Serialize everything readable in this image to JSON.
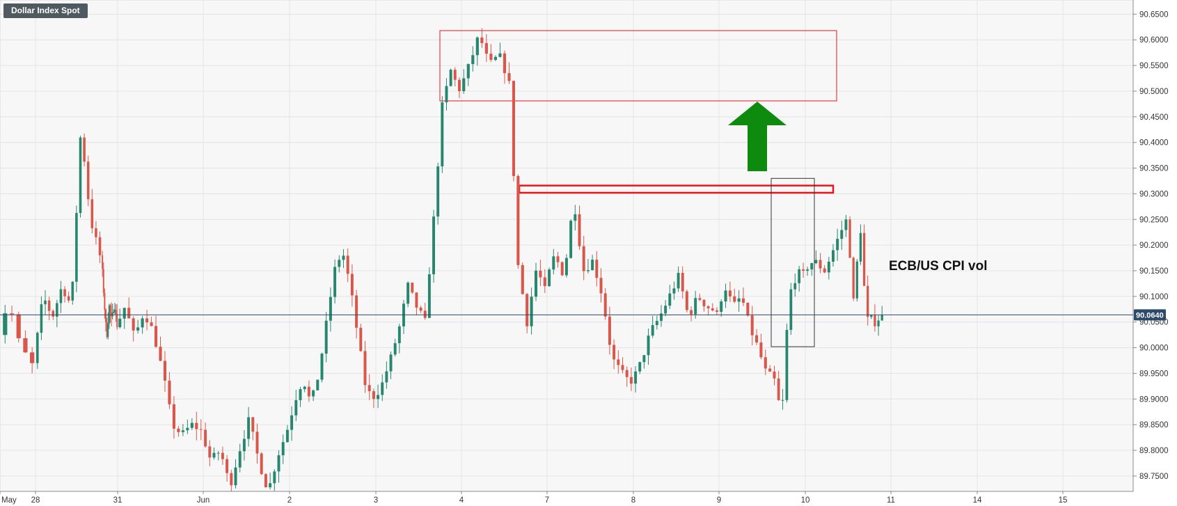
{
  "window": {
    "instrument_title": "Dollar Index Spot"
  },
  "annotations": {
    "event_label": "ECB/US CPI vol"
  },
  "colors": {
    "up": "#26876e",
    "down": "#d9574a",
    "grid": "#e4e4e4",
    "background": "#f7f7f7",
    "last_price_badge": "#2d4a6b",
    "resistance_box": "#e8141c",
    "arrow": "#0e8a0e",
    "focus_box": "#333333"
  },
  "chart_data": {
    "type": "candlestick",
    "title": "Dollar Index Spot",
    "grid": true,
    "y_axis_position": "right",
    "ylim": [
      89.72,
      90.66
    ],
    "x_tick_labels": [
      "May",
      "28",
      "31",
      "Jun",
      "2",
      "3",
      "4",
      "7",
      "8",
      "9",
      "10",
      "11",
      "14",
      "15"
    ],
    "y_tick_labels": [
      "90.6500",
      "90.6000",
      "90.5500",
      "90.5000",
      "90.4500",
      "90.4000",
      "90.3500",
      "90.3000",
      "90.2500",
      "90.2000",
      "90.1500",
      "90.1000",
      "90.0500",
      "90.0000",
      "89.9500",
      "89.9000",
      "89.8500",
      "89.8000",
      "89.7500"
    ],
    "last_price": {
      "value": 90.064,
      "label": "90.0640"
    },
    "segments": [
      {
        "start": "May 27 12:00",
        "end": "May 28 00:00",
        "bars": 7,
        "open": 90.07,
        "points": [
          90.02,
          90.09,
          90.0
        ],
        "close": 89.97
      },
      {
        "start": "May 28",
        "end": "May 29 08:00",
        "bars": 17,
        "open": 89.97,
        "points": [
          90.1,
          90.06,
          90.12,
          90.08,
          90.43,
          90.25
        ],
        "close": 90.18
      },
      {
        "start": "May 29 08:00",
        "end": "May 31",
        "bars": 14,
        "open": 90.18,
        "points": [
          90.1,
          90.02,
          90.08,
          90.05,
          90.09
        ],
        "close": 90.04
      },
      {
        "start": "May 31",
        "end": "Jun 1 00:00",
        "bars": 19,
        "open": 90.04,
        "points": [
          90.08,
          90.02,
          90.07,
          90.03,
          89.95,
          89.85,
          89.83,
          89.85
        ],
        "close": 89.84
      },
      {
        "start": "Jun 1 00:00",
        "end": "Jun 2 00:00",
        "bars": 20,
        "open": 89.84,
        "points": [
          89.78,
          89.8,
          89.73,
          89.8,
          89.86,
          89.78,
          89.72,
          89.79
        ],
        "close": 89.84
      },
      {
        "start": "Jun 2 00:00",
        "end": "Jun 3 00:00",
        "bars": 20,
        "open": 89.84,
        "points": [
          89.9,
          89.94,
          89.89,
          89.95,
          90.05,
          90.15,
          90.19,
          90.12,
          90.02,
          89.92
        ],
        "close": 89.9
      },
      {
        "start": "Jun 3 00:00",
        "end": "Jun 4 00:00",
        "bars": 20,
        "open": 89.9,
        "points": [
          89.93,
          89.98,
          90.04,
          90.12,
          90.08,
          90.05,
          90.25,
          90.47,
          90.54
        ],
        "close": 90.5
      },
      {
        "start": "Jun 4 00:00",
        "end": "Jun 4 14:00",
        "bars": 11,
        "open": 90.5,
        "points": [
          90.55,
          90.61,
          90.55,
          90.57
        ],
        "close": 90.52
      },
      {
        "start": "Jun 4 14:00",
        "end": "Jun 7 00:00",
        "bars": 8,
        "open": 90.52,
        "points": [
          90.16,
          90.05,
          90.15
        ],
        "close": 90.12
      },
      {
        "start": "Jun 7 00:00",
        "end": "Jun 8 00:00",
        "bars": 20,
        "open": 90.12,
        "points": [
          90.18,
          90.14,
          90.29,
          90.15,
          90.17,
          90.1,
          89.98,
          89.95
        ],
        "close": 89.93
      },
      {
        "start": "Jun 8 00:00",
        "end": "Jun 9 00:00",
        "bars": 20,
        "open": 89.93,
        "points": [
          89.97,
          90.03,
          90.06,
          90.1,
          90.14,
          90.06,
          90.1,
          90.08
        ],
        "close": 90.07
      },
      {
        "start": "Jun 9 00:00",
        "end": "Jun 9 16:00",
        "bars": 13,
        "open": 90.07,
        "points": [
          90.12,
          90.08,
          90.1,
          90.04,
          90.0,
          89.95
        ],
        "close": 89.94
      },
      {
        "start": "Jun 9 16:00",
        "end": "Jun 10 00:00",
        "bars": 7,
        "open": 89.94,
        "points": [
          89.86,
          90.1,
          90.14
        ],
        "close": 90.15
      },
      {
        "start": "Jun 10 00:00",
        "end": "Jun 10 12:00",
        "bars": 10,
        "open": 90.15,
        "points": [
          90.17,
          90.15,
          90.2
        ],
        "close": 90.25
      },
      {
        "start": "Jun 10 12:00",
        "end": "Jun 10 18:00",
        "bars": 6,
        "open": 90.25,
        "points": [
          90.17,
          90.05,
          90.28,
          90.13
        ],
        "close": 90.06
      },
      {
        "start": "Jun 10 18:00",
        "end": "Jun 10 22:00",
        "bars": 4,
        "open": 90.06,
        "points": [
          90.05
        ],
        "close": 90.064
      }
    ]
  }
}
